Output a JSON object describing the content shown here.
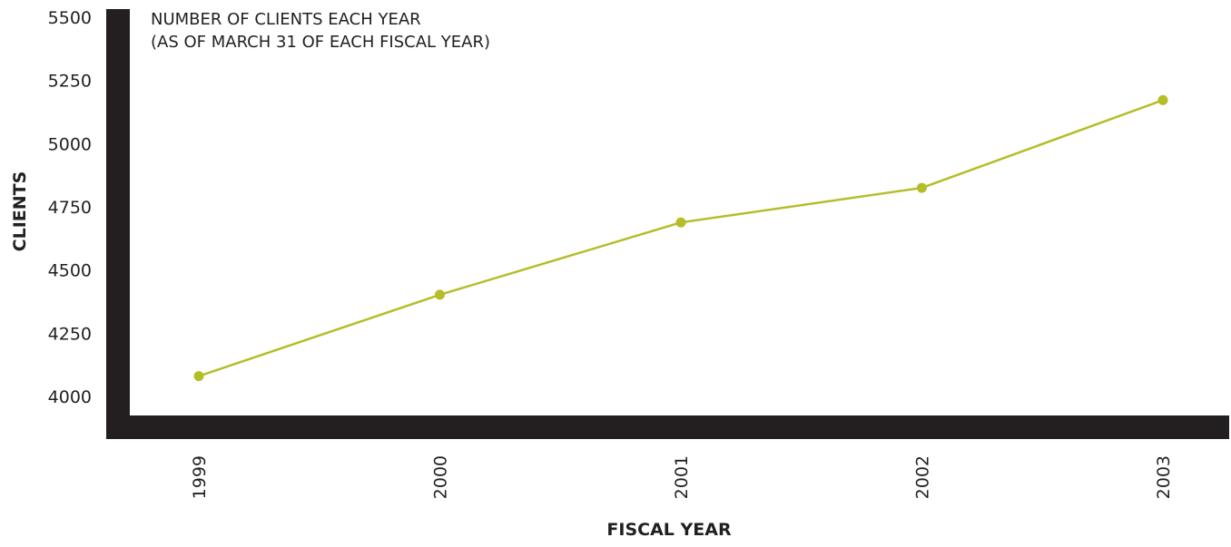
{
  "chart_data": {
    "type": "line",
    "title": "NUMBER OF CLIENTS EACH YEAR",
    "subtitle": "(AS OF MARCH 31 OF EACH FISCAL YEAR)",
    "xlabel": "FISCAL YEAR",
    "ylabel": "CLIENTS",
    "categories": [
      "1999",
      "2000",
      "2001",
      "2002",
      "2003"
    ],
    "series": [
      {
        "values": [
          4080,
          4402,
          4688,
          4825,
          5172
        ]
      }
    ],
    "yticks": [
      "4000",
      "4250",
      "4500",
      "4750",
      "5000",
      "5250",
      "5500"
    ],
    "ylim": [
      3910,
      5500
    ],
    "grid": false,
    "legend": "none",
    "colors": {
      "line": "#b5bd28",
      "axis": "#231f20",
      "text": "#231f20"
    }
  }
}
